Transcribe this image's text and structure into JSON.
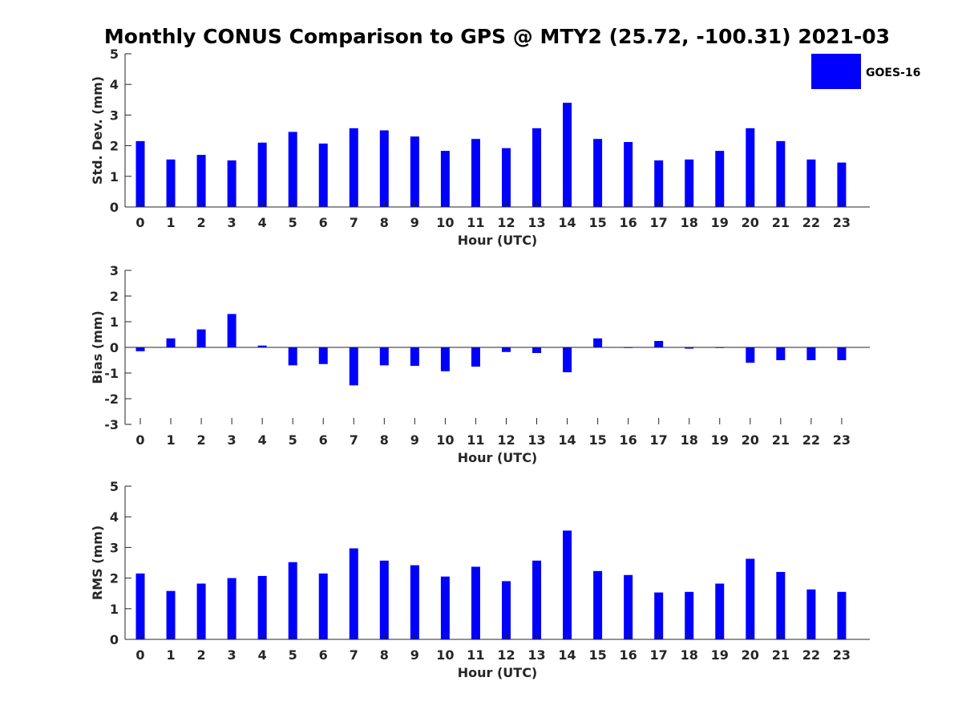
{
  "title": "Monthly CONUS Comparison to GPS @ MTY2 (25.72, -100.31) 2021-03",
  "legend": {
    "label": "GOES-16",
    "placement": "top-right"
  },
  "colors": {
    "bar": "#0000ff",
    "axis": "#262626",
    "background": "#ffffff"
  },
  "chart_data": [
    {
      "type": "bar",
      "name": "std-dev",
      "xlabel": "Hour (UTC)",
      "ylabel": "Std. Dev. (mm)",
      "ylim": [
        0,
        5
      ],
      "yticks": [
        "0",
        "1",
        "2",
        "3",
        "4",
        "5"
      ],
      "categories": [
        "0",
        "1",
        "2",
        "3",
        "4",
        "5",
        "6",
        "7",
        "8",
        "9",
        "10",
        "11",
        "12",
        "13",
        "14",
        "15",
        "16",
        "17",
        "18",
        "19",
        "20",
        "21",
        "22",
        "23"
      ],
      "series": [
        {
          "name": "GOES-16",
          "values": [
            2.15,
            1.55,
            1.7,
            1.52,
            2.1,
            2.45,
            2.07,
            2.57,
            2.5,
            2.3,
            1.83,
            2.22,
            1.92,
            2.57,
            3.4,
            2.22,
            2.12,
            1.52,
            1.55,
            1.83,
            2.57,
            2.15,
            1.55,
            1.45
          ]
        }
      ]
    },
    {
      "type": "bar",
      "name": "bias",
      "xlabel": "Hour (UTC)",
      "ylabel": "Bias (mm)",
      "ylim": [
        -3,
        3
      ],
      "yticks": [
        "-3",
        "-2",
        "-1",
        "0",
        "1",
        "2",
        "3"
      ],
      "categories": [
        "0",
        "1",
        "2",
        "3",
        "4",
        "5",
        "6",
        "7",
        "8",
        "9",
        "10",
        "11",
        "12",
        "13",
        "14",
        "15",
        "16",
        "17",
        "18",
        "19",
        "20",
        "21",
        "22",
        "23"
      ],
      "series": [
        {
          "name": "GOES-16",
          "values": [
            -0.15,
            0.35,
            0.7,
            1.3,
            0.07,
            -0.7,
            -0.65,
            -1.48,
            -0.7,
            -0.72,
            -0.93,
            -0.75,
            -0.18,
            -0.22,
            -0.97,
            0.35,
            0.0,
            0.25,
            -0.05,
            -0.02,
            -0.6,
            -0.5,
            -0.5,
            -0.5
          ]
        }
      ]
    },
    {
      "type": "bar",
      "name": "rms",
      "xlabel": "Hour (UTC)",
      "ylabel": "RMS (mm)",
      "ylim": [
        0,
        5
      ],
      "yticks": [
        "0",
        "1",
        "2",
        "3",
        "4",
        "5"
      ],
      "categories": [
        "0",
        "1",
        "2",
        "3",
        "4",
        "5",
        "6",
        "7",
        "8",
        "9",
        "10",
        "11",
        "12",
        "13",
        "14",
        "15",
        "16",
        "17",
        "18",
        "19",
        "20",
        "21",
        "22",
        "23"
      ],
      "series": [
        {
          "name": "GOES-16",
          "values": [
            2.15,
            1.58,
            1.82,
            2.0,
            2.07,
            2.52,
            2.15,
            2.97,
            2.57,
            2.42,
            2.05,
            2.37,
            1.9,
            2.57,
            3.55,
            2.23,
            2.1,
            1.53,
            1.55,
            1.82,
            2.63,
            2.2,
            1.63,
            1.55
          ]
        }
      ]
    }
  ]
}
